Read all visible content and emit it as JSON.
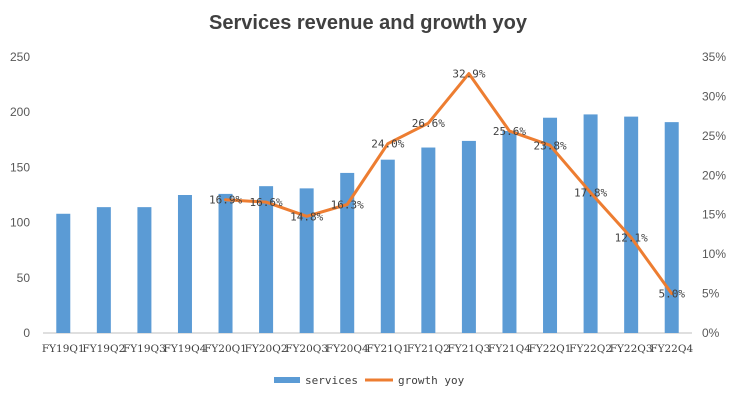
{
  "chart_data": {
    "type": "bar",
    "title": "Services revenue and growth yoy",
    "categories": [
      "FY19Q1",
      "FY19Q2",
      "FY19Q3",
      "FY19Q4",
      "FY20Q1",
      "FY20Q2",
      "FY20Q3",
      "FY20Q4",
      "FY21Q1",
      "FY21Q2",
      "FY21Q3",
      "FY21Q4",
      "FY22Q1",
      "FY22Q2",
      "FY22Q3",
      "FY22Q4"
    ],
    "series": [
      {
        "name": "services",
        "type": "bar",
        "axis": "left",
        "color": "#5B9BD5",
        "values": [
          108,
          114,
          114,
          125,
          126,
          133,
          131,
          145,
          157,
          168,
          174,
          183,
          195,
          198,
          196,
          191
        ]
      },
      {
        "name": "growth yoy",
        "type": "line",
        "axis": "right",
        "color": "#ED7D31",
        "values": [
          null,
          null,
          null,
          null,
          16.9,
          16.6,
          14.8,
          16.3,
          24.0,
          26.6,
          32.9,
          25.6,
          23.8,
          17.8,
          12.1,
          5.0
        ],
        "labels": [
          null,
          null,
          null,
          null,
          "16.9%",
          "16.6%",
          "14.8%",
          "16.3%",
          "24.0%",
          "26.6%",
          "32.9%",
          "25.6%",
          "23.8%",
          "17.8%",
          "12.1%",
          "5.0%"
        ]
      }
    ],
    "ylim_left": [
      0,
      250
    ],
    "yticks_left": [
      "0",
      "50",
      "100",
      "150",
      "200",
      "250"
    ],
    "ylim_right": [
      0,
      35
    ],
    "yticks_right": [
      "0%",
      "5%",
      "10%",
      "15%",
      "20%",
      "25%",
      "30%",
      "35%"
    ],
    "legend": "bottom",
    "grid": false
  }
}
